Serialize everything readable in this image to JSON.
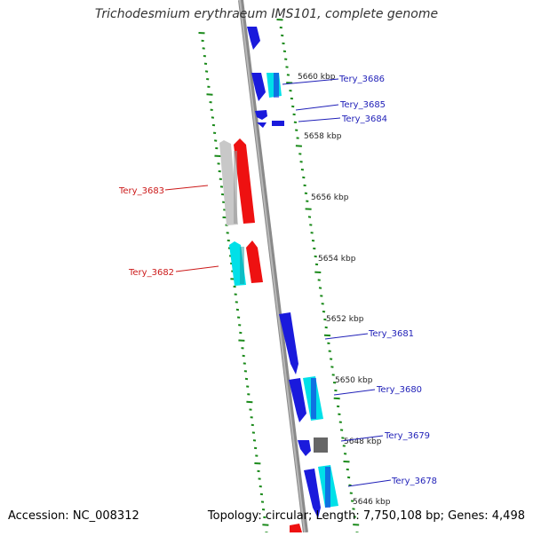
{
  "header": {
    "title": "Trichodesmium erythraeum IMS101, complete genome"
  },
  "footer": {
    "accession": "Accession: NC_008312",
    "summary": "Topology: circular; Length: 7,750,108 bp; Genes: 4,498"
  },
  "colors": {
    "forward_gene": "#1a1adc",
    "forward_gene_light": "#00e0e8",
    "reverse_gene": "#ee1111",
    "reverse_gene_alt": "#c8c8c8",
    "backbone": "#8a8a8a",
    "ticks": "#1a8a1a",
    "forward_label": "#1f1fb8",
    "reverse_label": "#cc1a1a"
  },
  "scale_labels": [
    "5660 kbp",
    "5658 kbp",
    "5656 kbp",
    "5654 kbp",
    "5652 kbp",
    "5650 kbp",
    "5648 kbp",
    "5646 kbp"
  ],
  "gene_labels": {
    "tery_3686": "Tery_3686",
    "tery_3685": "Tery_3685",
    "tery_3684": "Tery_3684",
    "tery_3683": "Tery_3683",
    "tery_3682": "Tery_3682",
    "tery_3681": "Tery_3681",
    "tery_3680": "Tery_3680",
    "tery_3679": "Tery_3679",
    "tery_3678": "Tery_3678"
  }
}
